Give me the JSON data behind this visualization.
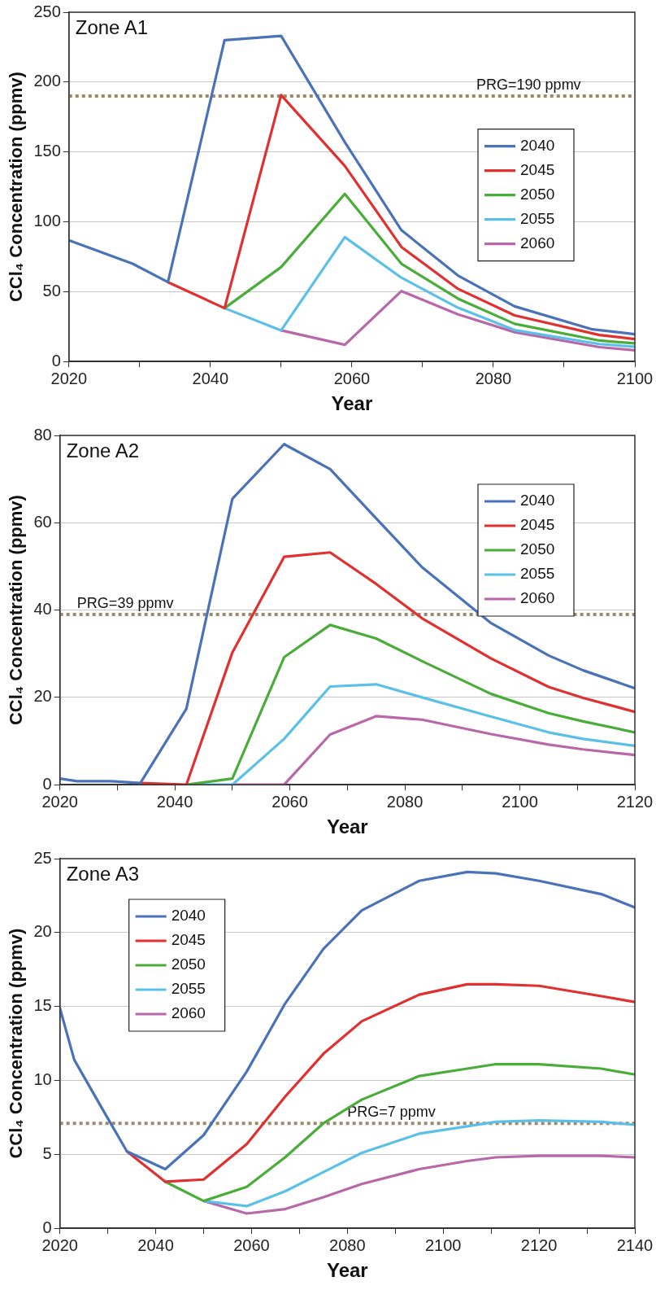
{
  "chart_data": [
    {
      "type": "line",
      "title": "Zone A1",
      "xlabel": "Year",
      "ylabel": "CCl₄ Concentration (ppmv)",
      "xlim": [
        2020,
        2100
      ],
      "xticks": [
        2020,
        {
          "value": 2030,
          "label": null
        },
        2040,
        {
          "value": 2050,
          "label": null
        },
        2060,
        {
          "value": 2070,
          "label": null
        },
        2080,
        {
          "value": 2090,
          "label": null
        },
        2100
      ],
      "ylim": [
        0,
        250
      ],
      "yticks": [
        0,
        50,
        100,
        150,
        200,
        250
      ],
      "grid": "y",
      "legend": "right",
      "marker": "none",
      "line_style": "solid",
      "ref_lines": [
        {
          "axis": "y",
          "value": 190,
          "label": "PRG=190 ppmv",
          "color": "#9c8a6a",
          "line_style": "dotted"
        }
      ],
      "series": [
        {
          "name": "2040",
          "color": "#4a72b8",
          "x": [
            2020,
            2029,
            2034,
            2042,
            2050,
            2059,
            2067,
            2075,
            2083,
            2094,
            2095,
            2100
          ],
          "values": [
            86.7,
            70,
            56.8,
            230,
            233,
            157,
            94,
            61.5,
            39.5,
            23,
            22.5,
            19.6
          ]
        },
        {
          "name": "2045",
          "color": "#e03030",
          "x": [
            2034,
            2042,
            2050,
            2059,
            2067,
            2075,
            2083,
            2095,
            2100
          ],
          "values": [
            56.8,
            38.2,
            190.7,
            140,
            82,
            52,
            33,
            19,
            16
          ]
        },
        {
          "name": "2050",
          "color": "#4aad3a",
          "x": [
            2042,
            2050,
            2059,
            2067,
            2075,
            2083,
            2095,
            2100
          ],
          "values": [
            38.2,
            67.6,
            120,
            70,
            45,
            27,
            15,
            13
          ]
        },
        {
          "name": "2055",
          "color": "#5bc0e8",
          "x": [
            2042,
            2050,
            2059,
            2067,
            2075,
            2083,
            2095,
            2100
          ],
          "values": [
            38.2,
            22.3,
            89,
            60,
            38.5,
            22.5,
            12.5,
            10.6
          ]
        },
        {
          "name": "2060",
          "color": "#b868a8",
          "x": [
            2050,
            2059,
            2067,
            2075,
            2083,
            2095,
            2100
          ],
          "values": [
            22.3,
            12,
            50.4,
            33.7,
            21,
            10.3,
            8
          ]
        }
      ]
    },
    {
      "type": "line",
      "title": "Zone A2",
      "xlabel": "Year",
      "ylabel": "CCl₄ Concentration (ppmv)",
      "xlim": [
        2020,
        2120
      ],
      "xticks": [
        2020,
        {
          "value": 2030,
          "label": null
        },
        2040,
        {
          "value": 2050,
          "label": null
        },
        2060,
        {
          "value": 2070,
          "label": null
        },
        2080,
        {
          "value": 2090,
          "label": null
        },
        2100,
        {
          "value": 2110,
          "label": null
        },
        2120
      ],
      "ylim": [
        0,
        80
      ],
      "yticks": [
        0,
        20,
        40,
        60,
        80
      ],
      "grid": "y",
      "legend": "top right",
      "marker": "none",
      "line_style": "solid",
      "ref_lines": [
        {
          "axis": "y",
          "value": 39,
          "label": "PRG=39 ppmv",
          "color": "#9c8a6a",
          "line_style": "dotted"
        }
      ],
      "series": [
        {
          "name": "2040",
          "color": "#4a72b8",
          "x": [
            2020,
            2023,
            2029,
            2034,
            2042,
            2050,
            2059,
            2067,
            2075,
            2083,
            2095,
            2105,
            2111,
            2120
          ],
          "values": [
            1.4,
            0.8,
            0.8,
            0.4,
            17.4,
            65.5,
            78,
            72.3,
            61,
            49.8,
            37,
            29.6,
            26.2,
            22.1
          ]
        },
        {
          "name": "2045",
          "color": "#e03030",
          "x": [
            2034,
            2042,
            2050,
            2059,
            2067,
            2075,
            2083,
            2095,
            2105,
            2111,
            2120
          ],
          "values": [
            0.4,
            0,
            30.3,
            52.2,
            53.2,
            46,
            38.1,
            28.9,
            22.4,
            19.9,
            16.7
          ]
        },
        {
          "name": "2050",
          "color": "#4aad3a",
          "x": [
            2042,
            2050,
            2059,
            2067,
            2075,
            2083,
            2095,
            2105,
            2111,
            2120
          ],
          "values": [
            0,
            1.4,
            29.2,
            36.6,
            33.5,
            28.3,
            20.8,
            16.4,
            14.5,
            12
          ]
        },
        {
          "name": "2055",
          "color": "#5bc0e8",
          "x": [
            2042,
            2050,
            2059,
            2067,
            2075,
            2083,
            2095,
            2105,
            2111,
            2120
          ],
          "values": [
            0,
            0,
            10.5,
            22.5,
            23,
            20,
            15.6,
            12,
            10.5,
            8.9
          ]
        },
        {
          "name": "2060",
          "color": "#b868a8",
          "x": [
            2050,
            2059,
            2067,
            2075,
            2083,
            2095,
            2105,
            2111,
            2120
          ],
          "values": [
            0,
            0,
            11.5,
            15.7,
            14.9,
            11.6,
            9.2,
            8.1,
            6.8
          ]
        }
      ]
    },
    {
      "type": "line",
      "title": "Zone A3",
      "xlabel": "Year",
      "ylabel": "CCl₄ Concentration (ppmv)",
      "xlim": [
        2020,
        2140
      ],
      "xticks": [
        2020,
        {
          "value": 2030,
          "label": null
        },
        2040,
        {
          "value": 2050,
          "label": null
        },
        2060,
        {
          "value": 2070,
          "label": null
        },
        2080,
        {
          "value": 2090,
          "label": null
        },
        2100,
        {
          "value": 2110,
          "label": null
        },
        2120,
        {
          "value": 2130,
          "label": null
        },
        2140
      ],
      "ylim": [
        0,
        25
      ],
      "yticks": [
        0,
        5,
        10,
        15,
        20,
        25
      ],
      "grid": "y",
      "legend": "top left",
      "marker": "none",
      "line_style": "solid",
      "ref_lines": [
        {
          "axis": "y",
          "value": 7.1,
          "label": "PRG=7 ppmv",
          "color": "#9c8a6a",
          "line_style": "dotted"
        }
      ],
      "series": [
        {
          "name": "2040",
          "color": "#4a72b8",
          "x": [
            2020,
            2023,
            2029,
            2034,
            2042,
            2050,
            2059,
            2067,
            2075,
            2083,
            2095,
            2105,
            2111,
            2120,
            2133,
            2140
          ],
          "values": [
            14.9,
            11.4,
            8,
            5.2,
            4,
            6.3,
            10.6,
            15.2,
            18.9,
            21.5,
            23.5,
            24.1,
            24,
            23.5,
            22.6,
            21.7
          ]
        },
        {
          "name": "2045",
          "color": "#e03030",
          "x": [
            2034,
            2042,
            2050,
            2059,
            2067,
            2075,
            2083,
            2095,
            2105,
            2111,
            2120,
            2133,
            2140
          ],
          "values": [
            5.2,
            3.15,
            3.3,
            5.7,
            8.9,
            11.8,
            14,
            15.8,
            16.5,
            16.5,
            16.4,
            15.7,
            15.3
          ]
        },
        {
          "name": "2050",
          "color": "#4aad3a",
          "x": [
            2042,
            2050,
            2059,
            2067,
            2075,
            2083,
            2095,
            2105,
            2111,
            2120,
            2133,
            2140
          ],
          "values": [
            3.15,
            1.85,
            2.8,
            4.8,
            7.1,
            8.7,
            10.3,
            10.8,
            11.1,
            11.1,
            10.8,
            10.4
          ]
        },
        {
          "name": "2055",
          "color": "#5bc0e8",
          "x": [
            2050,
            2059,
            2067,
            2075,
            2083,
            2095,
            2105,
            2111,
            2120,
            2133,
            2140
          ],
          "values": [
            1.85,
            1.5,
            2.5,
            3.8,
            5.1,
            6.4,
            6.9,
            7.2,
            7.3,
            7.2,
            7
          ]
        },
        {
          "name": "2060",
          "color": "#b868a8",
          "x": [
            2050,
            2059,
            2067,
            2075,
            2083,
            2095,
            2105,
            2111,
            2120,
            2133,
            2140
          ],
          "values": [
            1.85,
            1,
            1.3,
            2.1,
            3,
            4,
            4.55,
            4.8,
            4.9,
            4.9,
            4.8
          ]
        }
      ]
    }
  ]
}
